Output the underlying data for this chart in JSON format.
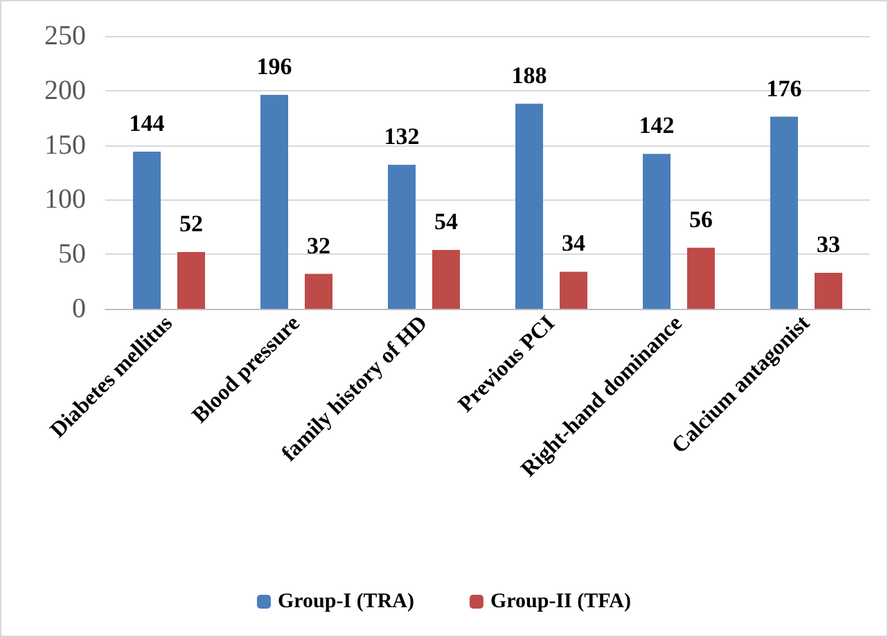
{
  "chart_data": {
    "type": "bar",
    "categories": [
      "Diabetes mellitus",
      "Blood pressure",
      "family history of HD",
      "Previous PCI",
      "Right-hand dominance",
      "Calcium antagonist"
    ],
    "series": [
      {
        "name": "Group-I (TRA)",
        "color": "#4a7ebb",
        "values": [
          144,
          196,
          132,
          188,
          142,
          176
        ]
      },
      {
        "name": "Group-II (TFA)",
        "color": "#be4b48",
        "values": [
          52,
          32,
          54,
          34,
          56,
          33
        ]
      }
    ],
    "ylim": [
      0,
      250
    ],
    "yticks": [
      0,
      50,
      100,
      150,
      200,
      250
    ],
    "grid": "y",
    "legend": "bottom",
    "data_labels": true
  }
}
